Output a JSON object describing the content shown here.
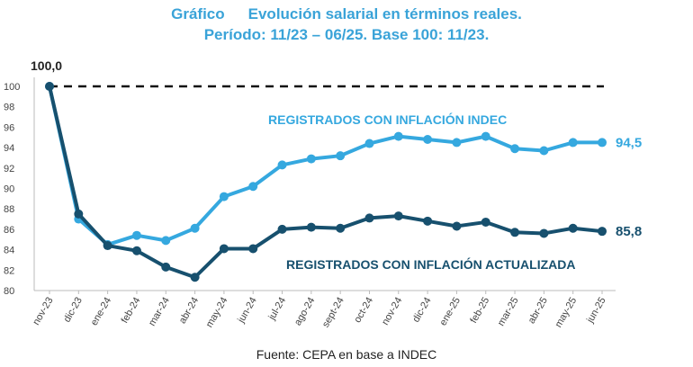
{
  "header": {
    "prefix": "Gráfico",
    "title": "Evolución salarial en términos reales.",
    "subtitle": "Período: 11/23 – 06/25. Base 100: 11/23."
  },
  "source": "Fuente: CEPA en base a INDEC",
  "colors": {
    "title": "#3aa3d8",
    "light_series": "#35a8df",
    "dark_series": "#17506e",
    "reference": "#111111",
    "axis": "#bbbbbb"
  },
  "chart_data": {
    "type": "line",
    "x": [
      "nov-23",
      "dic-23",
      "ene-24",
      "feb-24",
      "mar-24",
      "abr-24",
      "may-24",
      "jun-24",
      "jul-24",
      "ago-24",
      "sept-24",
      "oct-24",
      "nov-24",
      "dic-24",
      "ene-25",
      "feb-25",
      "mar-25",
      "abr-25",
      "may-25",
      "jun-25"
    ],
    "ylim": [
      80,
      100
    ],
    "yticks": [
      80,
      82,
      84,
      86,
      88,
      90,
      92,
      94,
      96,
      98,
      100
    ],
    "reference": {
      "value": 100,
      "label": "100,0"
    },
    "series": [
      {
        "name": "REGISTRADOS CON INFLACIÓN INDEC",
        "color": "#35a8df",
        "values": [
          100,
          87.0,
          84.5,
          85.4,
          84.9,
          86.1,
          89.2,
          90.2,
          92.3,
          92.9,
          93.2,
          94.4,
          95.1,
          94.8,
          94.5,
          95.1,
          93.9,
          93.7,
          94.5,
          94.5
        ],
        "end_label": "94,5"
      },
      {
        "name": "REGISTRADOS CON INFLACIÓN ACTUALIZADA",
        "color": "#17506e",
        "values": [
          100,
          87.5,
          84.4,
          83.9,
          82.3,
          81.3,
          84.1,
          84.1,
          86.0,
          86.2,
          86.1,
          87.1,
          87.3,
          86.8,
          86.3,
          86.7,
          85.7,
          85.6,
          86.1,
          85.8
        ],
        "end_label": "85,8"
      }
    ],
    "grid": false,
    "legend": "inline"
  }
}
